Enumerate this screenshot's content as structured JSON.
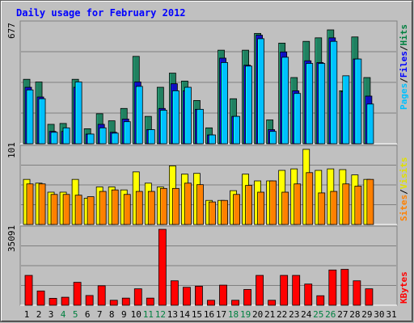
{
  "title": "Daily usage for February 2012",
  "colors": {
    "background": "#c0c0c0",
    "border_dark": "#606060",
    "plot_grid": "#808080",
    "title": "#0000ff",
    "hits": "#008040",
    "files": "#0000ff",
    "pages": "#00c0ff",
    "visits": "#ffff00",
    "sites": "#ff8000",
    "kbytes": "#ff0000",
    "weekend_label": "#008040",
    "weekday_label": "#000000"
  },
  "chart_data": [
    {
      "type": "bar",
      "title": "Daily usage for February 2012",
      "panel": "hits-files-pages",
      "y_max_label": "677",
      "ylim": [
        0,
        677
      ],
      "legend": [
        "Pages",
        "Files",
        "Hits"
      ],
      "categories": [
        "1",
        "2",
        "3",
        "4",
        "5",
        "6",
        "7",
        "8",
        "9",
        "10",
        "11",
        "12",
        "13",
        "14",
        "15",
        "16",
        "17",
        "18",
        "19",
        "20",
        "21",
        "22",
        "23",
        "24",
        "25",
        "26",
        "27",
        "28",
        "29",
        "30",
        "31"
      ],
      "series": [
        {
          "name": "Hits",
          "values": [
            365,
            350,
            110,
            115,
            365,
            85,
            170,
            130,
            200,
            495,
            155,
            320,
            400,
            355,
            245,
            90,
            530,
            255,
            530,
            625,
            135,
            570,
            375,
            580,
            600,
            645,
            300,
            605,
            375,
            0,
            0
          ]
        },
        {
          "name": "Files",
          "values": [
            320,
            265,
            70,
            70,
            320,
            55,
            110,
            65,
            140,
            350,
            80,
            200,
            340,
            300,
            195,
            50,
            485,
            155,
            445,
            615,
            80,
            520,
            300,
            470,
            460,
            600,
            295,
            480,
            270,
            0,
            0
          ]
        },
        {
          "name": "Pages",
          "values": [
            305,
            255,
            65,
            90,
            350,
            55,
            90,
            60,
            125,
            325,
            80,
            190,
            300,
            320,
            195,
            50,
            460,
            155,
            440,
            595,
            70,
            490,
            285,
            455,
            455,
            580,
            385,
            480,
            225,
            0,
            0
          ]
        }
      ]
    },
    {
      "type": "bar",
      "panel": "visits-sites",
      "y_max_label": "101",
      "ylim": [
        0,
        101
      ],
      "legend": [
        "Sites",
        "Visits"
      ],
      "categories": [
        "1",
        "2",
        "3",
        "4",
        "5",
        "6",
        "7",
        "8",
        "9",
        "10",
        "11",
        "12",
        "13",
        "14",
        "15",
        "16",
        "17",
        "18",
        "19",
        "20",
        "21",
        "22",
        "23",
        "24",
        "25",
        "26",
        "27",
        "28",
        "29",
        "30",
        "31"
      ],
      "series": [
        {
          "name": "Visits",
          "values": [
            60,
            55,
            43,
            43,
            60,
            35,
            50,
            50,
            46,
            70,
            55,
            50,
            78,
            67,
            68,
            32,
            32,
            45,
            67,
            58,
            58,
            72,
            74,
            100,
            72,
            74,
            73,
            66,
            60,
            0,
            0
          ]
        },
        {
          "name": "Sites",
          "values": [
            54,
            54,
            40,
            40,
            39,
            37,
            44,
            46,
            40,
            44,
            44,
            48,
            48,
            55,
            53,
            30,
            32,
            40,
            52,
            43,
            58,
            43,
            54,
            69,
            42,
            44,
            54,
            51,
            60,
            0,
            0
          ]
        }
      ]
    },
    {
      "type": "bar",
      "panel": "kbytes",
      "y_max_label": "35091",
      "ylim": [
        0,
        35091
      ],
      "legend": [
        "KBytes"
      ],
      "categories": [
        "1",
        "2",
        "3",
        "4",
        "5",
        "6",
        "7",
        "8",
        "9",
        "10",
        "11",
        "12",
        "13",
        "14",
        "15",
        "16",
        "17",
        "18",
        "19",
        "20",
        "21",
        "22",
        "23",
        "24",
        "25",
        "26",
        "27",
        "28",
        "29",
        "30",
        "31"
      ],
      "series": [
        {
          "name": "KBytes",
          "values": [
            13800,
            6600,
            3200,
            3700,
            10600,
            4500,
            9000,
            2300,
            3300,
            7600,
            3300,
            35091,
            11300,
            8300,
            8800,
            2300,
            9300,
            2300,
            7300,
            13800,
            2300,
            13800,
            13800,
            9800,
            4400,
            16300,
            16600,
            11300,
            7600,
            0,
            0
          ]
        }
      ]
    }
  ],
  "x_axis": {
    "weekend_days": [
      "4",
      "5",
      "11",
      "12",
      "18",
      "19",
      "25",
      "26"
    ]
  }
}
